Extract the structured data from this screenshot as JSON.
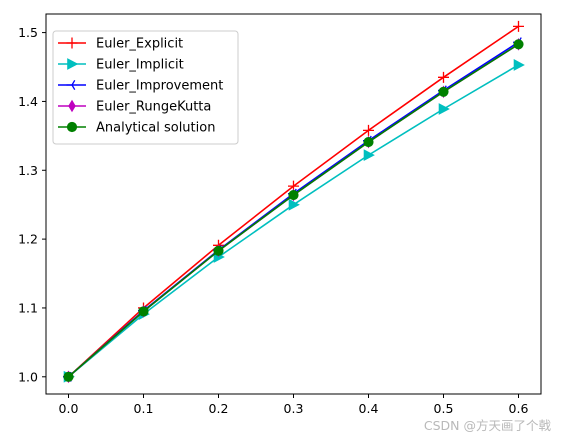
{
  "chart_data": {
    "type": "line",
    "x": [
      0.0,
      0.1,
      0.2,
      0.3,
      0.4,
      0.5,
      0.6
    ],
    "xlim": [
      -0.03,
      0.63
    ],
    "ylim": [
      0.975,
      1.527
    ],
    "xticks": [
      "0.0",
      "0.1",
      "0.2",
      "0.3",
      "0.4",
      "0.5",
      "0.6"
    ],
    "yticks": [
      "1.0",
      "1.1",
      "1.2",
      "1.3",
      "1.4",
      "1.5"
    ],
    "grid": false,
    "legend_position": "top-left",
    "series": [
      {
        "name": "Euler_Explicit",
        "color": "#ff0000",
        "marker": "plus",
        "values": [
          1.0,
          1.1,
          1.191,
          1.277,
          1.358,
          1.435,
          1.509
        ]
      },
      {
        "name": "Euler_Implicit",
        "color": "#00bfbf",
        "marker": "triangle-right",
        "values": [
          1.0,
          1.091,
          1.174,
          1.25,
          1.322,
          1.389,
          1.453
        ]
      },
      {
        "name": "Euler_Improvement",
        "color": "#0000ff",
        "marker": "tri-left",
        "values": [
          1.0,
          1.096,
          1.184,
          1.266,
          1.343,
          1.416,
          1.486
        ]
      },
      {
        "name": "Euler_RungeKutta",
        "color": "#bf00bf",
        "marker": "thin-diamond",
        "values": [
          1.0,
          1.095,
          1.183,
          1.264,
          1.341,
          1.414,
          1.483
        ]
      },
      {
        "name": "Analytical solution",
        "color": "#008000",
        "marker": "circle",
        "values": [
          1.0,
          1.095,
          1.183,
          1.264,
          1.341,
          1.414,
          1.483
        ]
      }
    ]
  },
  "watermark": "CSDN @方天画了个戟"
}
